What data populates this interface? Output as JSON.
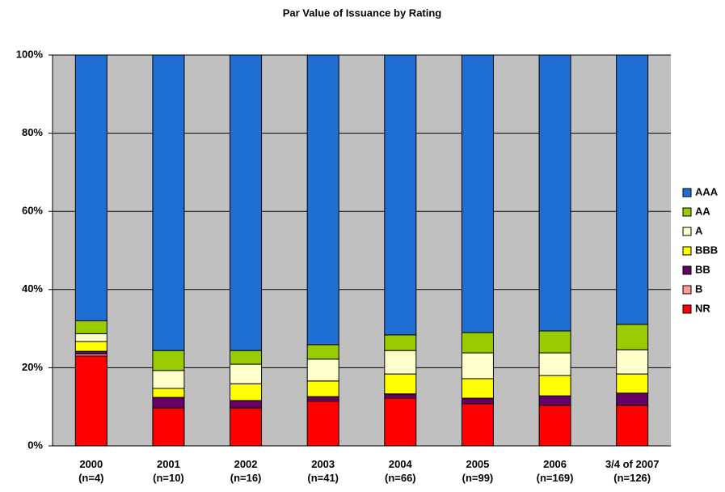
{
  "chart_data": {
    "type": "stacked_bar",
    "title": "Par Value of Issuance by Rating",
    "categories": [
      "2000\n(n=4)",
      "2001\n(n=10)",
      "2002\n(n=16)",
      "2003\n(n=41)",
      "2004\n(n=66)",
      "2005\n(n=99)",
      "2006\n(n=169)",
      "3/4 of 2007\n(n=126)"
    ],
    "series": [
      {
        "name": "NR",
        "color": "#ff0000",
        "values": [
          23,
          9.7,
          9.7,
          11.4,
          12.2,
          10.8,
          10.4,
          10.4
        ]
      },
      {
        "name": "B",
        "color": "#ff9999",
        "values": [
          0.5,
          0,
          0,
          0,
          0,
          0,
          0,
          0
        ]
      },
      {
        "name": "BB",
        "color": "#660066",
        "values": [
          0.7,
          2.7,
          1.9,
          1.2,
          1.1,
          1.4,
          2.4,
          3.1
        ]
      },
      {
        "name": "BBB",
        "color": "#ffff00",
        "values": [
          2.5,
          2.3,
          4.3,
          4,
          5.1,
          5,
          5.2,
          4.9
        ]
      },
      {
        "name": "A",
        "color": "#ffffcc",
        "values": [
          2,
          4.6,
          5,
          5.6,
          6,
          6.6,
          5.8,
          6.2
        ]
      },
      {
        "name": "AA",
        "color": "#99cc00",
        "values": [
          3.3,
          5.1,
          3.5,
          3.7,
          4,
          5.2,
          5.6,
          6.5
        ]
      },
      {
        "name": "AAA",
        "color": "#1f6ed4",
        "values": [
          68,
          75.6,
          75.6,
          74.1,
          71.6,
          71,
          70.6,
          68.9
        ]
      }
    ],
    "ylim": [
      0,
      100
    ],
    "yticks": [
      {
        "value": 0,
        "label": "0%"
      },
      {
        "value": 20,
        "label": "20%"
      },
      {
        "value": 40,
        "label": "40%"
      },
      {
        "value": 60,
        "label": "60%"
      },
      {
        "value": 80,
        "label": "80%"
      },
      {
        "value": 100,
        "label": "100%"
      }
    ],
    "grid": true
  }
}
